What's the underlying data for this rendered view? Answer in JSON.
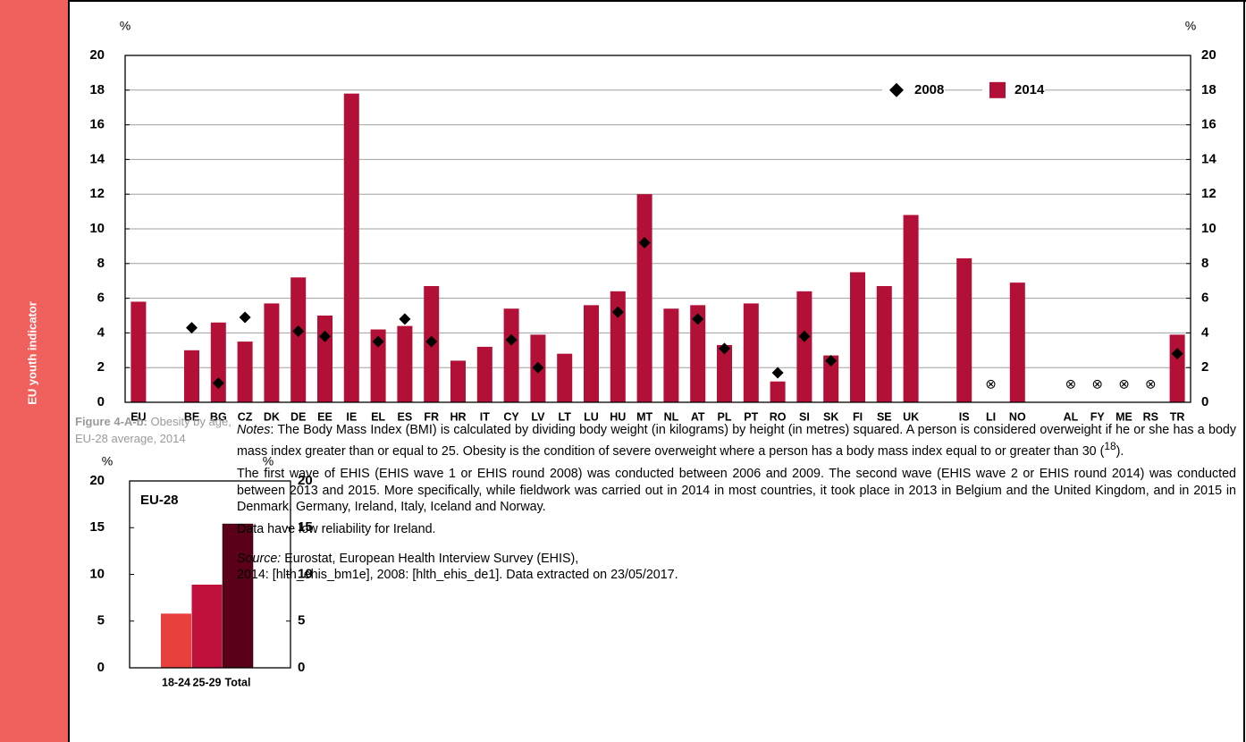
{
  "sidebar": "EU youth indicator",
  "caption": {
    "label": "Figure 4-A-b:",
    "text": " Obesity by age, EU-28 average, 2014"
  },
  "notes": {
    "p1": [
      "Notes",
      ": The Body Mass Index (BMI) is calculated by dividing body weight (in kilograms) by height (in metres) squared. A person is considered overweight if he or she has a body mass index greater than or equal to 25. Obesity is the condition of severe overweight where a person has a body mass index equal to or greater than 30 (",
      "18",
      ")."
    ],
    "p2": "The first wave of EHIS (EHIS wave 1 or EHIS round 2008) was conducted between 2006 and 2009. The second wave (EHIS wave 2 or EHIS round 2014) was conducted between 2013 and 2015. More specifically, while fieldwork was carried out in 2014 in most countries, it took place in 2013 in Belgium and the United Kingdom, and in 2015 in Denmark, Germany, Ireland, Italy, Iceland and Norway.",
    "p3": "Data have low reliability for Ireland.",
    "source": [
      "Source:",
      " Eurostat, European Health Interview Survey (EHIS),",
      "2014: [hlth_ehis_bm1e], 2008: [hlth_ehis_de1]. Data extracted on 23/05/2017."
    ]
  },
  "chart_data": [
    {
      "type": "bar",
      "y_label": "%",
      "y2_label": "%",
      "categories": [
        "EU",
        null,
        "BE",
        "BG",
        "CZ",
        "DK",
        "DE",
        "EE",
        "IE",
        "EL",
        "ES",
        "FR",
        "HR",
        "IT",
        "CY",
        "LV",
        "LT",
        "LU",
        "HU",
        "MT",
        "NL",
        "AT",
        "PL",
        "PT",
        "RO",
        "SI",
        "SK",
        "FI",
        "SE",
        "UK",
        null,
        "IS",
        "LI",
        "NO",
        null,
        "AL",
        "FY",
        "ME",
        "RS",
        "TR"
      ],
      "series": [
        {
          "name": "2008",
          "color": "#000000",
          "marker": "diamond",
          "values": [
            null,
            null,
            4.3,
            1.1,
            4.9,
            null,
            4.1,
            3.8,
            null,
            3.5,
            4.8,
            3.5,
            null,
            null,
            3.6,
            2.0,
            null,
            null,
            5.2,
            9.2,
            null,
            4.8,
            3.1,
            null,
            1.7,
            3.8,
            2.4,
            null,
            null,
            null,
            null,
            null,
            null,
            null,
            null,
            null,
            null,
            null,
            null,
            2.8
          ]
        },
        {
          "name": "2014",
          "color": "#b31038",
          "values": [
            5.8,
            null,
            3.0,
            4.6,
            3.5,
            5.7,
            7.2,
            5.0,
            17.8,
            4.2,
            4.4,
            6.7,
            2.4,
            3.2,
            5.4,
            3.9,
            2.8,
            5.6,
            6.4,
            12.0,
            5.4,
            5.6,
            3.3,
            5.7,
            1.2,
            6.4,
            2.7,
            7.5,
            6.7,
            10.8,
            null,
            8.3,
            null,
            6.9,
            null,
            null,
            null,
            null,
            null,
            3.9
          ],
          "value_labels": [
            null,
            null,
            null,
            null,
            null,
            null,
            null,
            null,
            null,
            null,
            null,
            null,
            null,
            null,
            null,
            null,
            null,
            null,
            null,
            null,
            null,
            null,
            null,
            null,
            null,
            null,
            null,
            null,
            null,
            null,
            null,
            null,
            "⊗",
            null,
            null,
            "⊗",
            "⊗",
            "⊗",
            "⊗",
            null
          ]
        }
      ],
      "ylim": [
        0,
        20
      ],
      "yticks": [
        0,
        2,
        4,
        6,
        8,
        10,
        12,
        14,
        16,
        18,
        20
      ],
      "y2lim": [
        0,
        20
      ],
      "y2ticks": [
        0,
        2,
        4,
        6,
        8,
        10,
        12,
        14,
        16,
        18,
        20
      ],
      "grid": true,
      "legend": "top-right"
    },
    {
      "type": "bar",
      "y_label": "%",
      "y2_label": "%",
      "inner_label": "EU-28",
      "categories": [
        "18-24",
        "25-29",
        "Total"
      ],
      "values": [
        5.8,
        8.9,
        15.4
      ],
      "colors": [
        "#e8403c",
        "#c0103c",
        "#5a0018"
      ],
      "ylim": [
        0,
        20
      ],
      "yticks": [
        0,
        5,
        10,
        15,
        20
      ],
      "y2lim": [
        0,
        20
      ],
      "y2ticks": [
        0,
        5,
        10,
        15,
        20
      ],
      "grid": false
    }
  ]
}
